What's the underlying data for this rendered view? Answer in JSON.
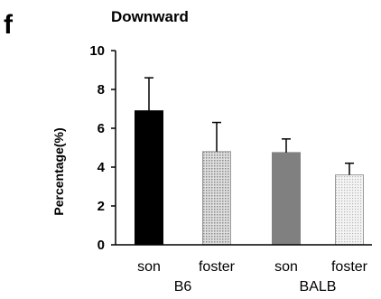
{
  "panel_letter": "f",
  "chart_data": {
    "type": "bar",
    "title": "Downward",
    "xlabel": "",
    "ylabel": "Percentage(%)",
    "ylim": [
      0,
      10
    ],
    "yticks": [
      "0",
      "2",
      "4",
      "6",
      "8",
      "10"
    ],
    "categories": [
      "son",
      "foster",
      "son",
      "foster"
    ],
    "groups": [
      {
        "label": "B6",
        "categories": [
          0,
          1
        ]
      },
      {
        "label": "BALB",
        "categories": [
          2,
          3
        ]
      }
    ],
    "values": [
      6.9,
      4.8,
      4.75,
      3.6
    ],
    "errors": [
      1.7,
      1.5,
      0.7,
      0.6
    ],
    "bar_colors": [
      "#000000",
      "#c8c8c8",
      "#808080",
      "#e6e6e6"
    ],
    "bar_patterns": [
      "solid",
      "dots",
      "solid",
      "dots"
    ],
    "grid": false,
    "legend": "none"
  }
}
